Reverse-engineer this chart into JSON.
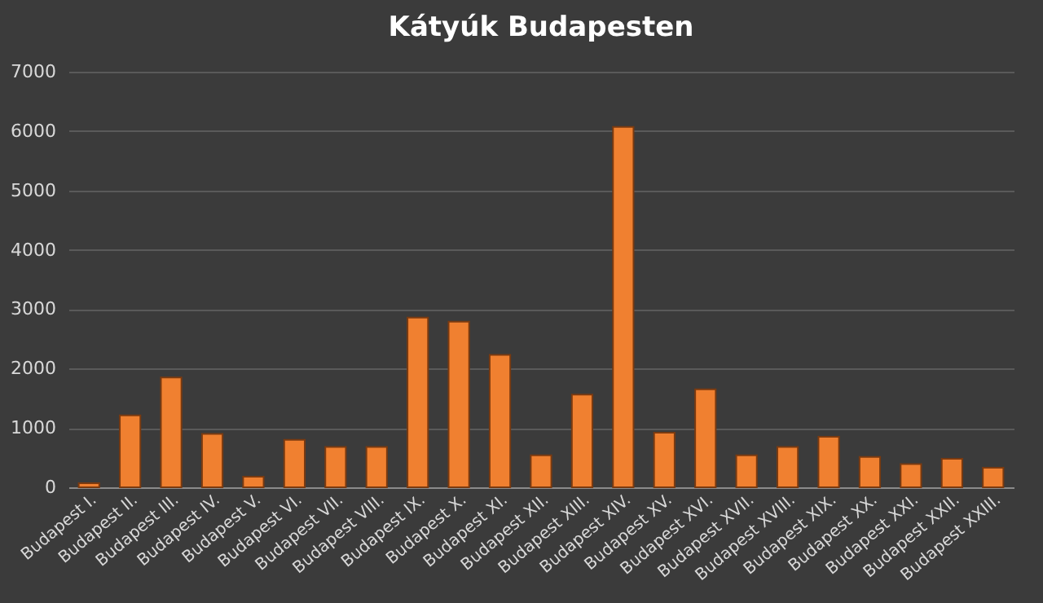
{
  "chart_data": {
    "type": "bar",
    "title": "Kátyúk  Budapesten",
    "categories": [
      "Budapest I.",
      "Budapest II.",
      "Budapest III.",
      "Budapest IV.",
      "Budapest V.",
      "Budapest VI.",
      "Budapest VII.",
      "Budapest VIII.",
      "Budapest IX.",
      "Budapest X.",
      "Budapest XI.",
      "Budapest XII.",
      "Budapest XIII.",
      "Budapest XIV.",
      "Budapest XV.",
      "Budapest XVI.",
      "Budapest XVII.",
      "Budapest XVIII.",
      "Budapest XIX.",
      "Budapest XX.",
      "Budapest XXI.",
      "Budapest XXII.",
      "Budapest XXIII."
    ],
    "values": [
      70,
      1210,
      1850,
      900,
      180,
      800,
      680,
      680,
      2860,
      2790,
      2230,
      540,
      1560,
      6070,
      920,
      1650,
      540,
      680,
      850,
      510,
      390,
      480,
      330
    ],
    "color": "#f08030",
    "ylim": [
      0,
      7000
    ],
    "yticks": [
      0,
      1000,
      2000,
      3000,
      4000,
      5000,
      6000,
      7000
    ],
    "grid": "y"
  }
}
